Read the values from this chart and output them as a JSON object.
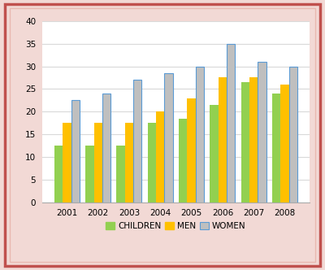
{
  "years": [
    "2001",
    "2002",
    "2003",
    "2004",
    "2005",
    "2006",
    "2007",
    "2008"
  ],
  "children": [
    12.5,
    12.5,
    12.5,
    17.5,
    18.5,
    21.5,
    26.5,
    24.0
  ],
  "men": [
    17.5,
    17.5,
    17.5,
    20.0,
    23.0,
    27.5,
    27.5,
    26.0
  ],
  "women": [
    22.5,
    24.0,
    27.0,
    28.5,
    30.0,
    35.0,
    31.0,
    30.0
  ],
  "children_color": "#92d050",
  "men_color": "#ffc000",
  "women_color": "#bfbfbf",
  "women_edge_color": "#5b9bd5",
  "ylim": [
    0,
    40
  ],
  "yticks": [
    0,
    5,
    10,
    15,
    20,
    25,
    30,
    35,
    40
  ],
  "legend_labels": [
    "CHILDREN",
    "MEN",
    "WOMEN"
  ],
  "plot_bg_color": "#ffffff",
  "fig_bg_color": "#f2d9d5",
  "border_color": "#c0504d",
  "grid_color": "#d9d9d9",
  "bar_width": 0.27,
  "tick_fontsize": 7.5,
  "legend_fontsize": 7.5
}
